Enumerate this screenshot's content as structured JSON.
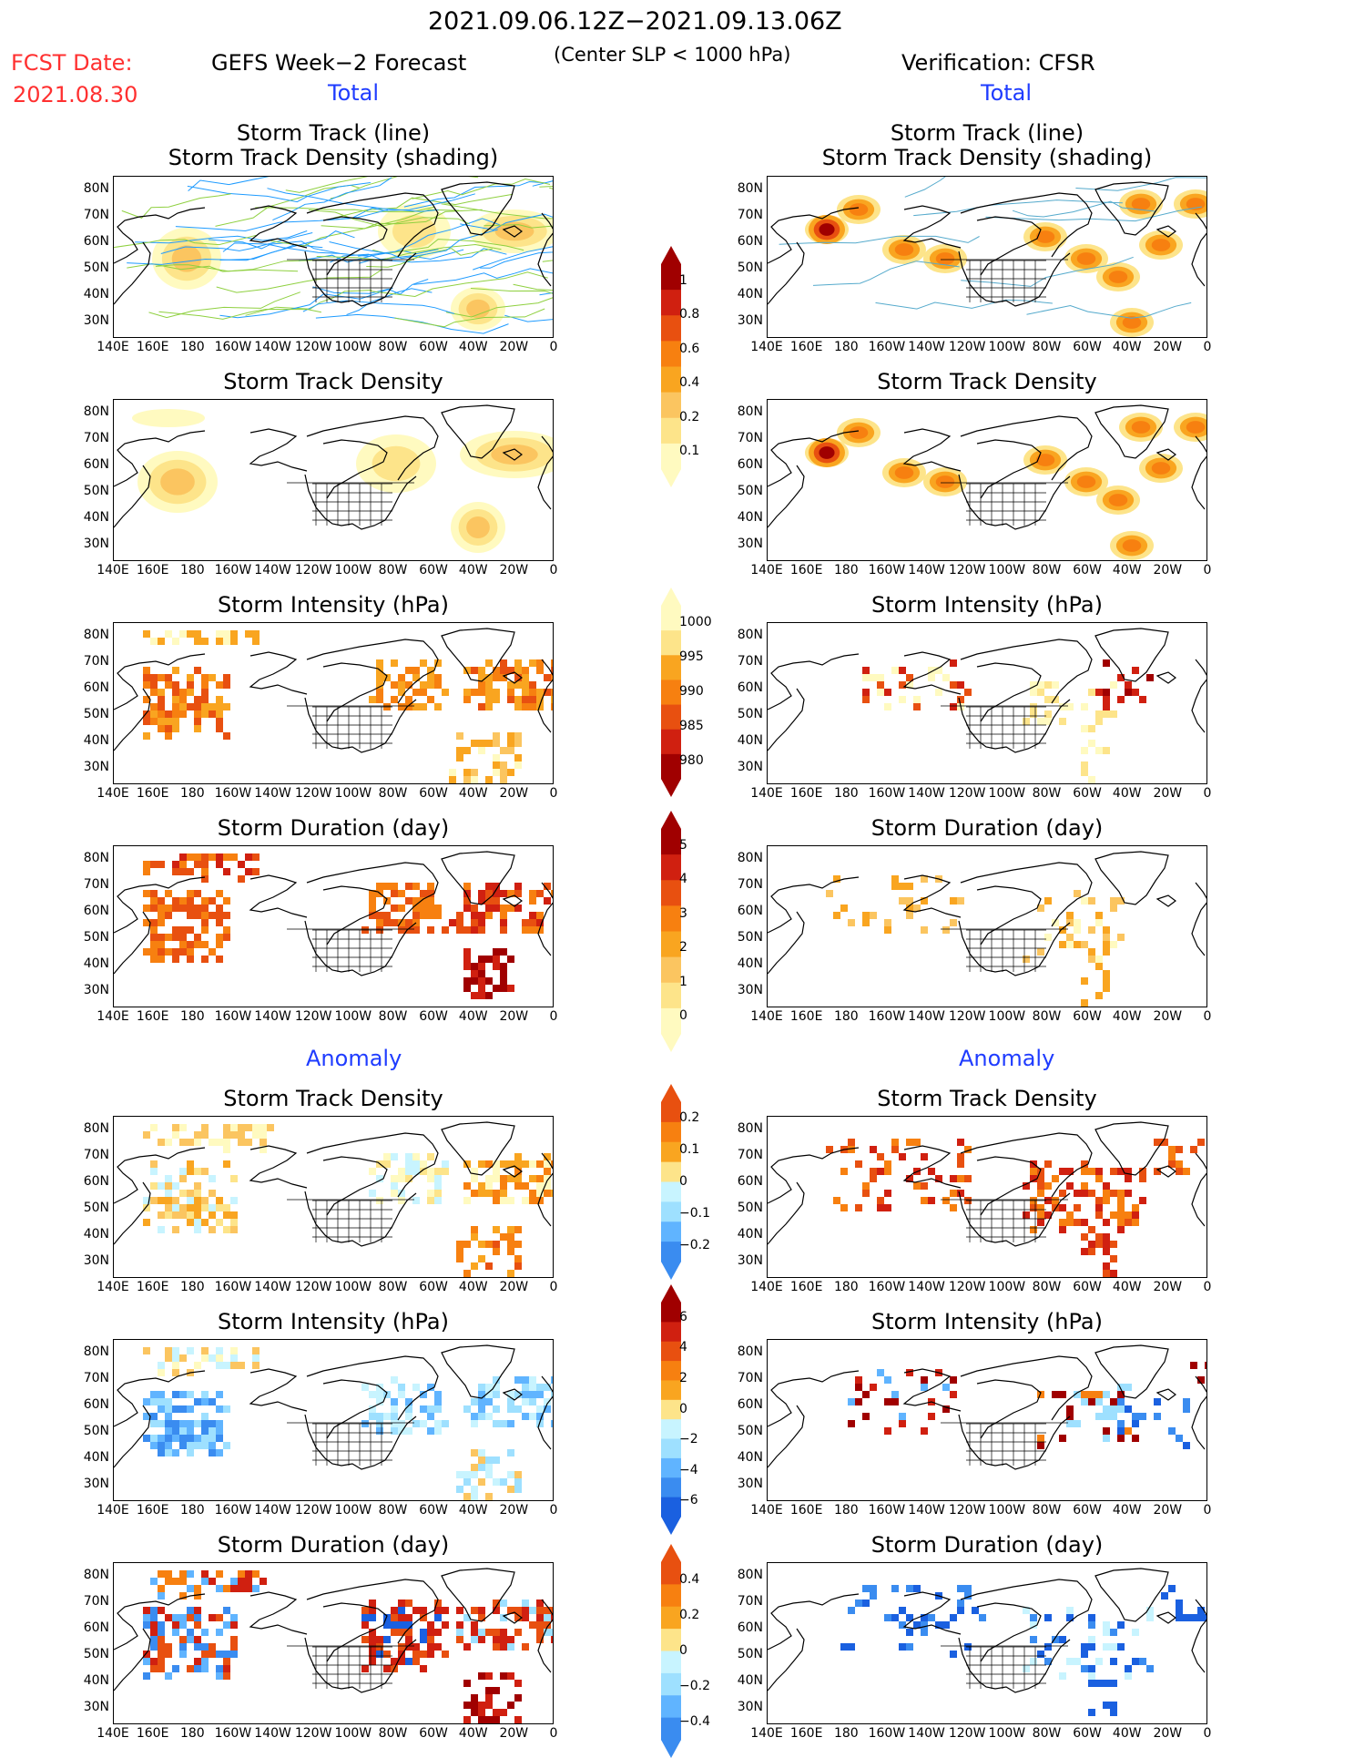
{
  "header": {
    "period": "2021.09.06.12Z−2021.09.13.06Z",
    "fcst_label": "FCST Date:",
    "fcst_date": "2021.08.30",
    "left_title": "GEFS Week−2 Forecast",
    "subtitle": "(Center SLP < 1000 hPa)",
    "right_title": "Verification: CFSR",
    "total_left": "Total",
    "total_right": "Total",
    "anomaly_left": "Anomaly",
    "anomaly_right": "Anomaly"
  },
  "panel_titles": {
    "track_line": "Storm Track (line)",
    "track_shading": "Storm Track Density (shading)",
    "density": "Storm Track Density",
    "intensity": "Storm Intensity (hPa)",
    "duration": "Storm Duration (day)"
  },
  "axes": {
    "lat_labels": [
      "80N",
      "70N",
      "60N",
      "50N",
      "40N",
      "30N"
    ],
    "lon_labels": [
      "140E",
      "160E",
      "180",
      "160W",
      "140W",
      "120W",
      "100W",
      "80W",
      "60W",
      "40W",
      "20W",
      "0"
    ]
  },
  "colorbars": {
    "density_total": [
      "1",
      "0.8",
      "0.6",
      "0.4",
      "0.2",
      "0.1"
    ],
    "intensity_total": [
      "1000",
      "995",
      "990",
      "985",
      "980"
    ],
    "duration_total": [
      "5",
      "4",
      "3",
      "2",
      "1",
      "0"
    ],
    "density_anom": [
      "0.2",
      "0.1",
      "0",
      "−0.1",
      "−0.2"
    ],
    "intensity_anom": [
      "6",
      "4",
      "2",
      "0",
      "−2",
      "−4",
      "−6"
    ],
    "duration_anom": [
      "0.4",
      "0.2",
      "0",
      "−0.2",
      "−0.4"
    ]
  },
  "colors": {
    "warm": [
      "#fffac0",
      "#fde48a",
      "#fbc560",
      "#f9a520",
      "#f78010",
      "#e85010",
      "#d02010",
      "#a00000"
    ],
    "cool": [
      "#c8f4ff",
      "#9ee0ff",
      "#60b4ff",
      "#3a8cf0",
      "#1a60e0"
    ],
    "track_fcst_a": "#1e9bff",
    "track_fcst_b": "#8fd040",
    "track_obs": "#55aacc"
  }
}
